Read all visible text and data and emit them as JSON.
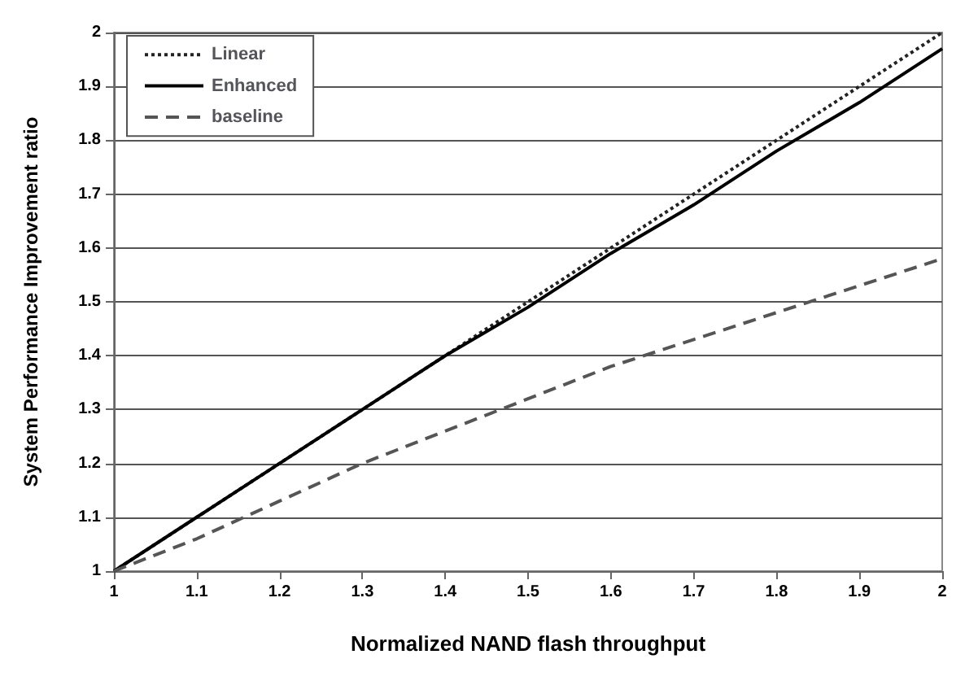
{
  "chart_data": {
    "type": "line",
    "xlabel": "Normalized NAND flash throughput",
    "ylabel": "System Performance Improvement ratio",
    "x": [
      1,
      1.1,
      1.2,
      1.3,
      1.4,
      1.5,
      1.6,
      1.7,
      1.8,
      1.9,
      2
    ],
    "series": [
      {
        "name": "Linear",
        "color": "#222222",
        "line_style": "dotted",
        "values": [
          1,
          1.1,
          1.2,
          1.3,
          1.4,
          1.5,
          1.6,
          1.7,
          1.8,
          1.9,
          2
        ]
      },
      {
        "name": "Enhanced",
        "color": "#000000",
        "line_style": "solid",
        "values": [
          1,
          1.1,
          1.2,
          1.3,
          1.4,
          1.49,
          1.59,
          1.68,
          1.78,
          1.87,
          1.97
        ]
      },
      {
        "name": "baseline",
        "color": "#555555",
        "line_style": "dashed",
        "values": [
          1,
          1.06,
          1.13,
          1.2,
          1.26,
          1.32,
          1.38,
          1.43,
          1.48,
          1.53,
          1.58
        ]
      }
    ],
    "xlim": [
      1,
      2
    ],
    "xticks": [
      1,
      1.1,
      1.2,
      1.3,
      1.4,
      1.5,
      1.6,
      1.7,
      1.8,
      1.9,
      2
    ],
    "ylim": [
      1,
      2
    ],
    "yticks": [
      1,
      1.1,
      1.2,
      1.3,
      1.4,
      1.5,
      1.6,
      1.7,
      1.8,
      1.9,
      2
    ],
    "grid": "y",
    "legend": "top left",
    "marker": "none"
  }
}
